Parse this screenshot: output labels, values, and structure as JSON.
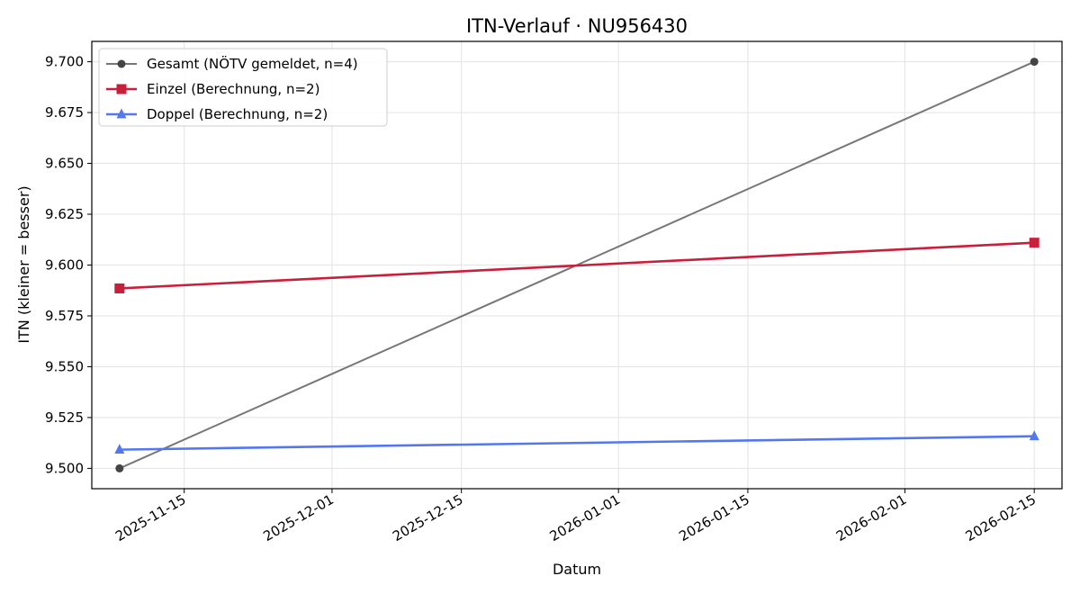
{
  "chart_data": {
    "type": "line",
    "title": "ITN-Verlauf · NU956430",
    "xlabel": "Datum",
    "ylabel": "ITN  (kleiner = besser)",
    "x_type": "date",
    "xlim": [
      "2025-11-05",
      "2026-02-18"
    ],
    "ylim": [
      9.49,
      9.71
    ],
    "yticks": [
      9.5,
      9.525,
      9.55,
      9.575,
      9.6,
      9.625,
      9.65,
      9.675,
      9.7
    ],
    "ytick_labels": [
      "9.500",
      "9.525",
      "9.550",
      "9.575",
      "9.600",
      "9.625",
      "9.650",
      "9.675",
      "9.700"
    ],
    "xticks": [
      "2025-11-15",
      "2025-12-01",
      "2025-12-15",
      "2026-01-01",
      "2026-01-15",
      "2026-02-01",
      "2026-02-15"
    ],
    "grid": true,
    "legend_position": "upper-left",
    "series": [
      {
        "name": "Gesamt (NÖTV gemeldet, n=4)",
        "color": "#777777",
        "marker": "circle",
        "marker_color": "#444444",
        "x": [
          "2025-11-08",
          "2026-02-15"
        ],
        "y": [
          9.5,
          9.7
        ]
      },
      {
        "name": "Einzel (Berechnung, n=2)",
        "color": "#c8203c",
        "marker": "square",
        "marker_color": "#c8203c",
        "x": [
          "2025-11-08",
          "2026-02-15"
        ],
        "y": [
          9.5885,
          9.611
        ]
      },
      {
        "name": "Doppel (Berechnung, n=2)",
        "color": "#5577ee",
        "marker": "triangle",
        "marker_color": "#5577ee",
        "x": [
          "2025-11-08",
          "2026-02-15"
        ],
        "y": [
          9.5092,
          9.5158
        ]
      }
    ]
  }
}
